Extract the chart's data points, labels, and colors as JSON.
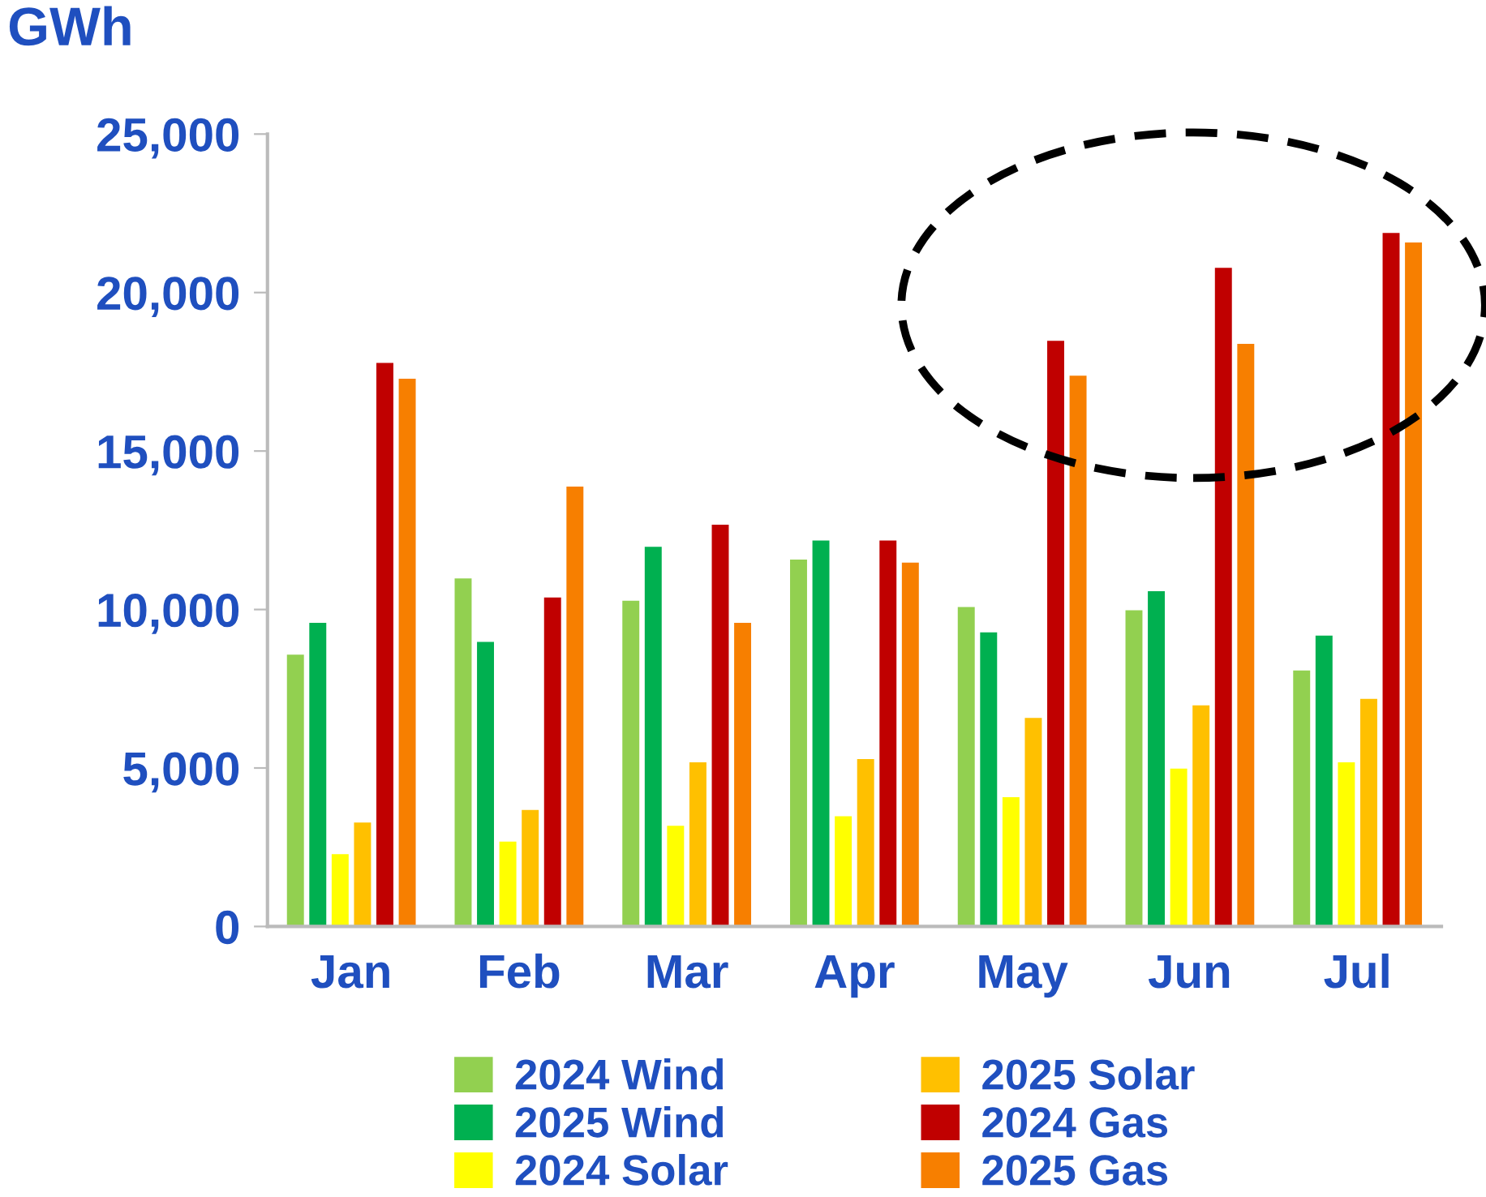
{
  "chart_data": {
    "type": "bar",
    "ylabel": "GWh",
    "categories": [
      "Jan",
      "Feb",
      "Mar",
      "Apr",
      "May",
      "Jun",
      "Jul"
    ],
    "series": [
      {
        "name": "2024 Wind",
        "color": "#92d050",
        "values": [
          8600,
          11000,
          10300,
          11600,
          10100,
          10000,
          8100
        ]
      },
      {
        "name": "2025 Wind",
        "color": "#00b050",
        "values": [
          9600,
          9000,
          12000,
          12200,
          9300,
          10600,
          9200
        ]
      },
      {
        "name": "2024 Solar",
        "color": "#ffff00",
        "values": [
          2300,
          2700,
          3200,
          3500,
          4100,
          5000,
          5200
        ]
      },
      {
        "name": "2025 Solar",
        "color": "#ffc000",
        "values": [
          3300,
          3700,
          5200,
          5300,
          6600,
          7000,
          7200
        ]
      },
      {
        "name": "2024 Gas",
        "color": "#c00000",
        "values": [
          17800,
          10400,
          12700,
          12200,
          18500,
          20800,
          21900
        ]
      },
      {
        "name": "2025 Gas",
        "color": "#f77f00",
        "values": [
          17300,
          13900,
          9600,
          11500,
          17400,
          18400,
          21600
        ]
      }
    ],
    "ylim": [
      0,
      25000
    ],
    "yticks": [
      {
        "value": 0,
        "label": "0"
      },
      {
        "value": 5000,
        "label": "5,000"
      },
      {
        "value": 10000,
        "label": "10,000"
      },
      {
        "value": 15000,
        "label": "15,000"
      },
      {
        "value": 20000,
        "label": "20,000"
      },
      {
        "value": 25000,
        "label": "25,000"
      }
    ],
    "grid": false,
    "legend": "bottom"
  }
}
